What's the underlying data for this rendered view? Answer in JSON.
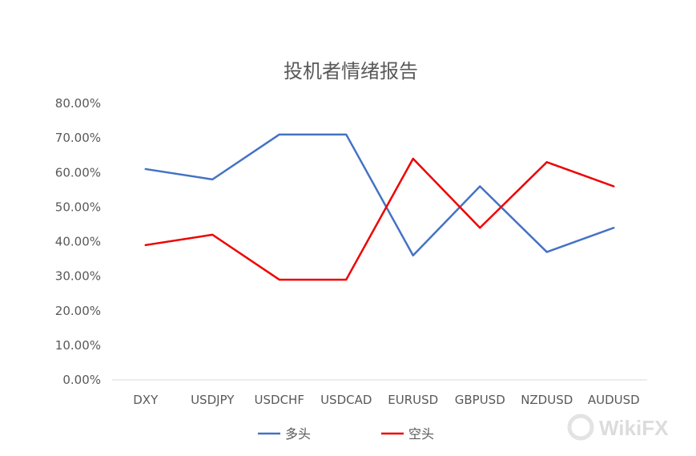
{
  "chart_data": {
    "type": "line",
    "title": "投机者情绪报告",
    "xlabel": "",
    "ylabel": "",
    "categories": [
      "DXY",
      "USDJPY",
      "USDCHF",
      "USDCAD",
      "EURUSD",
      "GBPUSD",
      "NZDUSD",
      "AUDUSD"
    ],
    "ylim": [
      0,
      80
    ],
    "yticks": [
      "0.00%",
      "10.00%",
      "20.00%",
      "30.00%",
      "40.00%",
      "50.00%",
      "60.00%",
      "70.00%",
      "80.00%"
    ],
    "grid": false,
    "legend_position": "bottom",
    "series": [
      {
        "name": "多头",
        "color": "#4472c4",
        "values": [
          61,
          58,
          71,
          71,
          36,
          56,
          37,
          44
        ]
      },
      {
        "name": "空头",
        "color": "#ee0000",
        "values": [
          39,
          42,
          29,
          29,
          64,
          44,
          63,
          56
        ]
      }
    ]
  },
  "watermark": {
    "text": "WikiFX"
  },
  "colors": {
    "axis": "#d9d9d9",
    "text": "#595959"
  }
}
